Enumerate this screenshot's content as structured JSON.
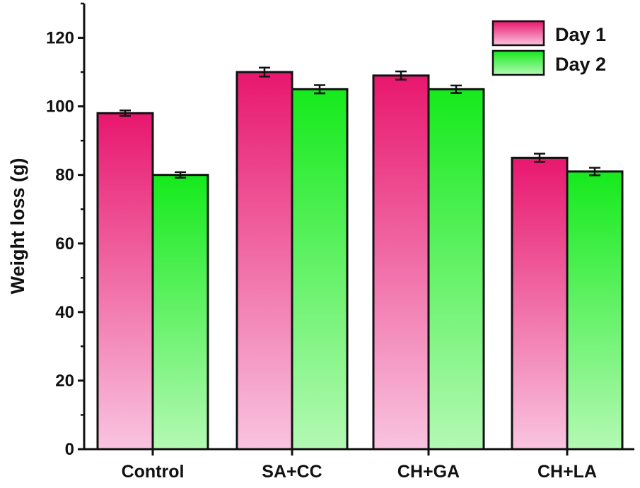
{
  "chart_data": {
    "type": "bar",
    "title": "",
    "xlabel": "",
    "ylabel": "Weight loss (g)",
    "ylim": [
      0,
      130
    ],
    "yticks": [
      0,
      20,
      40,
      60,
      80,
      100,
      120
    ],
    "categories": [
      "Control",
      "SA+CC",
      "CH+GA",
      "CH+LA"
    ],
    "series": [
      {
        "name": "Day 1",
        "values": [
          98,
          110,
          109,
          85
        ],
        "errors": [
          0.8,
          1.3,
          1.2,
          1.2
        ],
        "color_top": "#e8176e",
        "color_bottom": "#f9c4e0"
      },
      {
        "name": "Day 2",
        "values": [
          80,
          105,
          105,
          81
        ],
        "errors": [
          0.8,
          1.2,
          1.1,
          1.1
        ],
        "color_top": "#15ea1c",
        "color_bottom": "#b4f9b4"
      }
    ],
    "legend_position": "top-right",
    "grid": false
  }
}
